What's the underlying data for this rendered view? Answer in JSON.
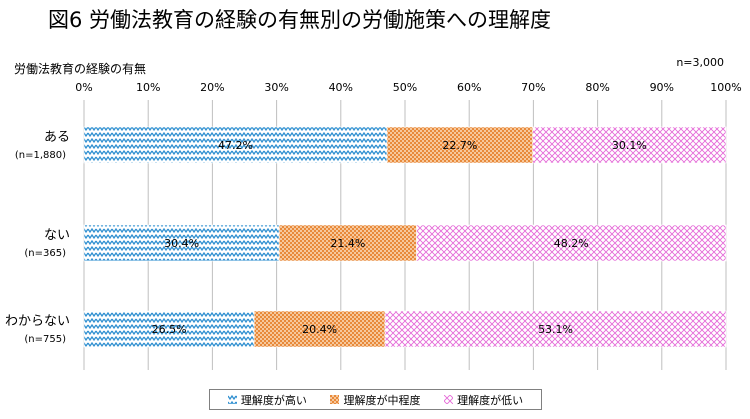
{
  "title": "図6  労働法教育の経験の有無別の労働施策への理解度",
  "subtitle": "労働法教育の経験の有無",
  "n_total": "n=3,000",
  "colors": {
    "high": "#2e8fd0",
    "mid": "#e8893a",
    "low": "#e46ad8"
  },
  "chart_data": {
    "type": "bar",
    "orientation": "horizontal-stacked-100",
    "categories": [
      "ある",
      "ない",
      "わからない"
    ],
    "category_n": [
      "(n=1,880)",
      "(n=365)",
      "(n=755)"
    ],
    "series": [
      {
        "name": "理解度が高い",
        "values": [
          47.2,
          30.4,
          26.5
        ],
        "labels": [
          "47.2%",
          "30.4%",
          "26.5%"
        ]
      },
      {
        "name": "理解度が中程度",
        "values": [
          22.7,
          21.4,
          20.4
        ],
        "labels": [
          "22.7%",
          "21.4%",
          "20.4%"
        ]
      },
      {
        "name": "理解度が低い",
        "values": [
          30.1,
          48.2,
          53.1
        ],
        "labels": [
          "30.1%",
          "48.2%",
          "53.1%"
        ]
      }
    ],
    "xlim": [
      0,
      100
    ],
    "xticks": [
      "0%",
      "10%",
      "20%",
      "30%",
      "40%",
      "50%",
      "60%",
      "70%",
      "80%",
      "90%",
      "100%"
    ],
    "legend_position": "bottom"
  }
}
